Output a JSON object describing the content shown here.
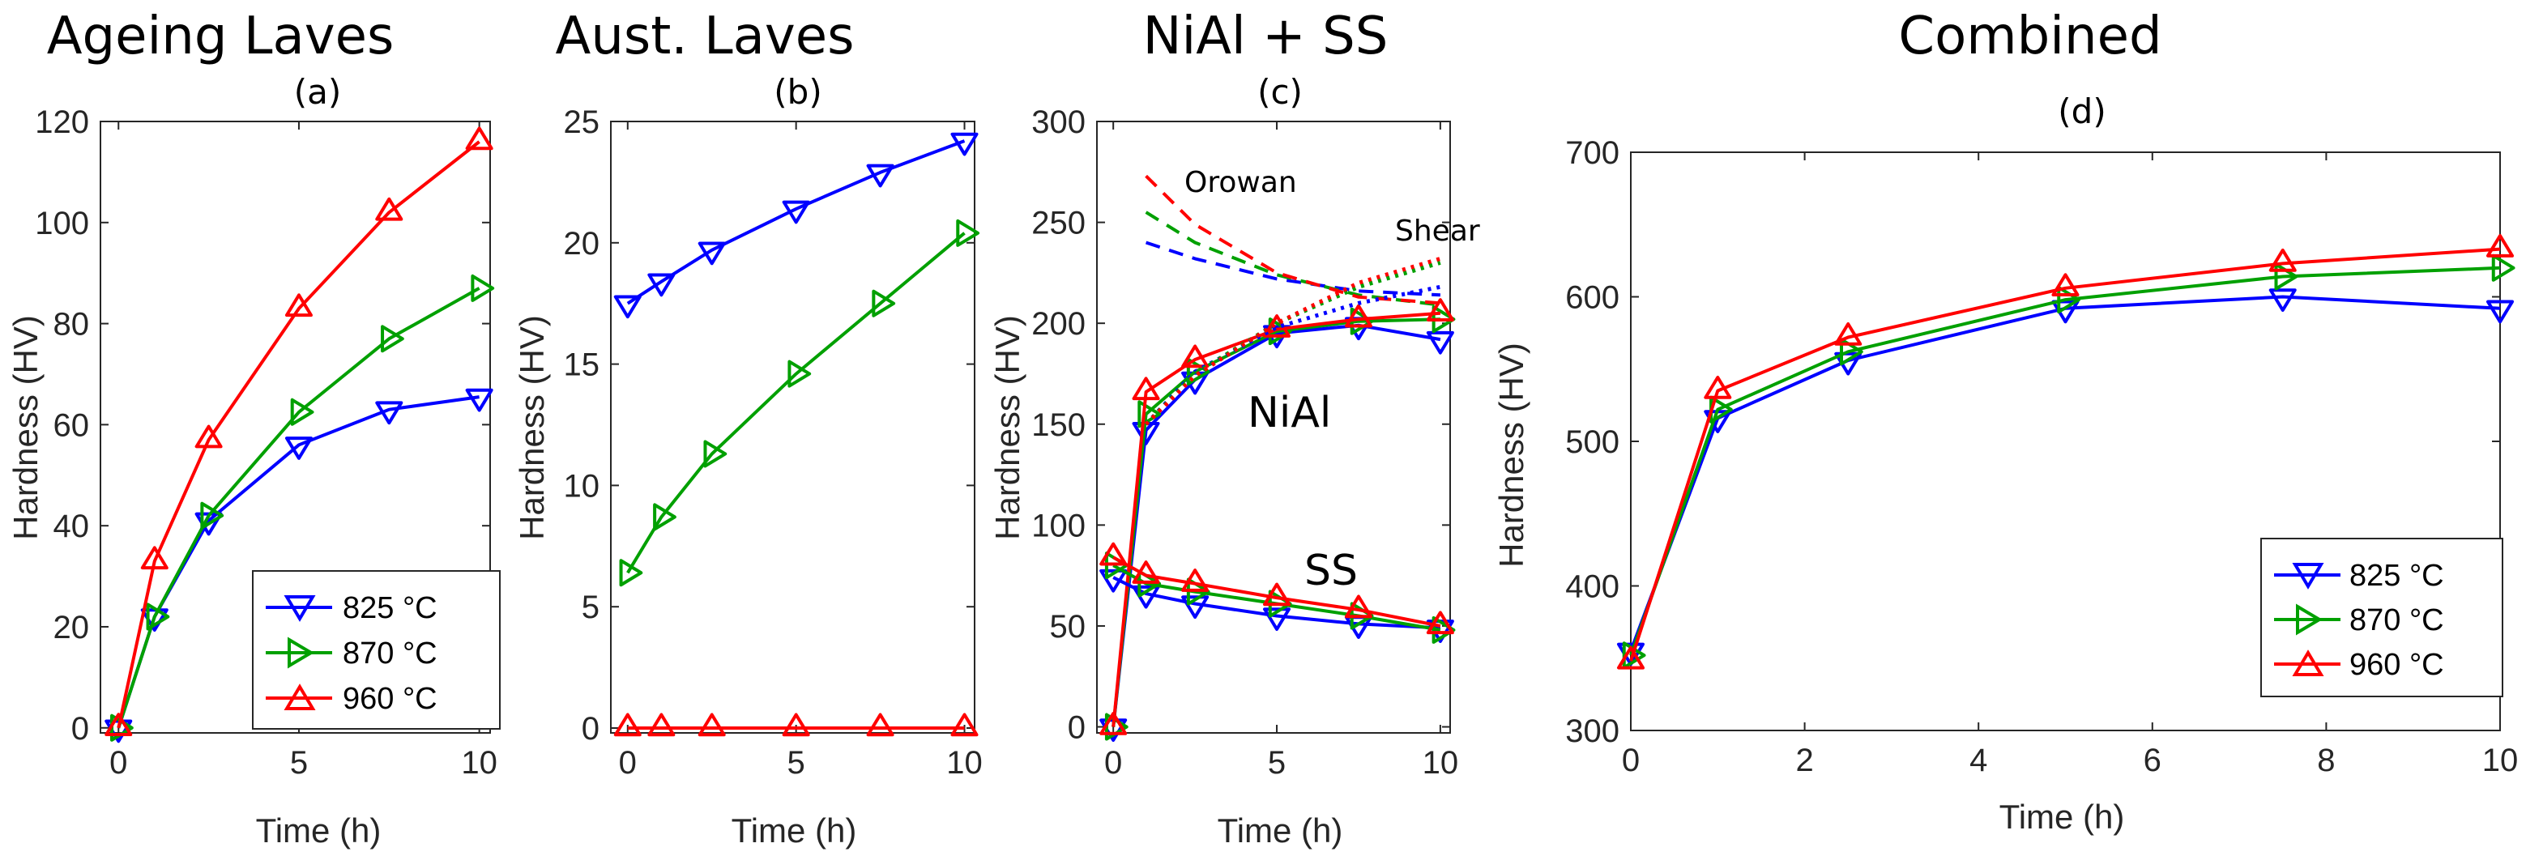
{
  "colors": {
    "c825": "#0000ff",
    "c870": "#00a000",
    "c960": "#ff0000",
    "axis": "#262626"
  },
  "legend_entries": [
    "825 °C",
    "870 °C",
    "960 °C"
  ],
  "chart_data": [
    {
      "id": "a",
      "type": "line",
      "title": "Ageing Laves",
      "subtitle": "(a)",
      "xlabel": "Time (h)",
      "ylabel": "Hardness (HV)",
      "xlim": [
        -0.5,
        10.3
      ],
      "ylim": [
        -1,
        120
      ],
      "xticks": [
        0,
        5,
        10
      ],
      "yticks": [
        0,
        20,
        40,
        60,
        80,
        100,
        120
      ],
      "legend": "bottom-right",
      "series": [
        {
          "name": "825 °C",
          "color": "#0000ff",
          "marker": "triangle-down",
          "x": [
            0,
            1,
            2.5,
            5,
            7.5,
            10
          ],
          "y": [
            0,
            22,
            41,
            56,
            63,
            65.5
          ]
        },
        {
          "name": "870 °C",
          "color": "#00a000",
          "marker": "triangle-right",
          "x": [
            0,
            1,
            2.5,
            5,
            7.5,
            10
          ],
          "y": [
            0,
            22,
            42,
            62.5,
            77,
            87
          ]
        },
        {
          "name": "960 °C",
          "color": "#ff0000",
          "marker": "triangle-up",
          "x": [
            0,
            1,
            2.5,
            5,
            7.5,
            10
          ],
          "y": [
            0,
            33,
            57,
            83,
            102,
            116
          ]
        }
      ]
    },
    {
      "id": "b",
      "type": "line",
      "title": "Aust. Laves",
      "subtitle": "(b)",
      "xlabel": "Time (h)",
      "ylabel": "Hardness (HV)",
      "xlim": [
        -0.5,
        10.3
      ],
      "ylim": [
        -0.2,
        25
      ],
      "xticks": [
        0,
        5,
        10
      ],
      "yticks": [
        0,
        5,
        10,
        15,
        20,
        25
      ],
      "series": [
        {
          "name": "825 °C",
          "color": "#0000ff",
          "marker": "triangle-down",
          "x": [
            0,
            1,
            2.5,
            5,
            7.5,
            10
          ],
          "y": [
            17.5,
            18.4,
            19.7,
            21.4,
            22.9,
            24.2
          ]
        },
        {
          "name": "870 °C",
          "color": "#00a000",
          "marker": "triangle-right",
          "x": [
            0,
            1,
            2.5,
            5,
            7.5,
            10
          ],
          "y": [
            6.4,
            8.7,
            11.3,
            14.6,
            17.5,
            20.4
          ]
        },
        {
          "name": "960 °C",
          "color": "#ff0000",
          "marker": "triangle-up",
          "x": [
            0,
            1,
            2.5,
            5,
            7.5,
            10
          ],
          "y": [
            0,
            0,
            0,
            0,
            0,
            0
          ]
        }
      ]
    },
    {
      "id": "c",
      "type": "line",
      "title": "NiAl + SS",
      "subtitle": "(c)",
      "xlabel": "Time (h)",
      "ylabel": "Hardness (HV)",
      "xlim": [
        -0.5,
        10.3
      ],
      "ylim": [
        -3,
        300
      ],
      "xticks": [
        0,
        5,
        10
      ],
      "yticks": [
        0,
        50,
        100,
        150,
        200,
        250,
        300
      ],
      "annotations": {
        "orowan": "Orowan",
        "shear": "Shear",
        "nial": "NiAl",
        "ss": "SS"
      },
      "series": [
        {
          "name": "825 °C NiAl",
          "color": "#0000ff",
          "marker": "triangle-down",
          "x": [
            0,
            1,
            2.5,
            5,
            7.5,
            10
          ],
          "y": [
            0,
            147,
            172,
            195,
            199,
            192
          ]
        },
        {
          "name": "870 °C NiAl",
          "color": "#00a000",
          "marker": "triangle-right",
          "x": [
            0,
            1,
            2.5,
            5,
            7.5,
            10
          ],
          "y": [
            0,
            155,
            176,
            196,
            201,
            202
          ]
        },
        {
          "name": "960 °C NiAl",
          "color": "#ff0000",
          "marker": "triangle-up",
          "x": [
            0,
            1,
            2.5,
            5,
            7.5,
            10
          ],
          "y": [
            0,
            166,
            182,
            197,
            202,
            205
          ]
        },
        {
          "name": "825 °C SS",
          "color": "#0000ff",
          "marker": "triangle-down",
          "x": [
            0,
            1,
            2.5,
            5,
            7.5,
            10
          ],
          "y": [
            74,
            66,
            61,
            55,
            51,
            49
          ]
        },
        {
          "name": "870 °C SS",
          "color": "#00a000",
          "marker": "triangle-right",
          "x": [
            0,
            1,
            2.5,
            5,
            7.5,
            10
          ],
          "y": [
            80,
            71,
            67,
            61,
            55,
            48
          ]
        },
        {
          "name": "960 °C SS",
          "color": "#ff0000",
          "marker": "triangle-up",
          "x": [
            0,
            1,
            2.5,
            5,
            7.5,
            10
          ],
          "y": [
            84,
            75,
            71,
            64,
            58,
            50
          ]
        },
        {
          "name": "825 °C Orowan",
          "color": "#0000ff",
          "style": "dashed",
          "x": [
            1,
            2.5,
            5,
            7.5,
            10
          ],
          "y": [
            240,
            232,
            222,
            216,
            214
          ]
        },
        {
          "name": "870 °C Orowan",
          "color": "#00a000",
          "style": "dashed",
          "x": [
            1,
            2.5,
            5,
            7.5,
            10
          ],
          "y": [
            255,
            240,
            224,
            214,
            209
          ]
        },
        {
          "name": "960 °C Orowan",
          "color": "#ff0000",
          "style": "dashed",
          "x": [
            1,
            2.5,
            5,
            7.5,
            10
          ],
          "y": [
            273,
            249,
            225,
            213,
            210
          ]
        },
        {
          "name": "825 °C Shear",
          "color": "#0000ff",
          "style": "dotted",
          "x": [
            1,
            2.5,
            5,
            7.5,
            10
          ],
          "y": [
            150,
            176,
            198,
            210,
            218
          ]
        },
        {
          "name": "870 °C Shear",
          "color": "#00a000",
          "style": "dotted",
          "x": [
            1,
            2.5,
            5,
            7.5,
            10
          ],
          "y": [
            150,
            175,
            200,
            218,
            230
          ]
        },
        {
          "name": "960 °C Shear",
          "color": "#ff0000",
          "style": "dotted",
          "x": [
            1,
            2.5,
            5,
            7.5,
            10
          ],
          "y": [
            150,
            174,
            200,
            220,
            232
          ]
        }
      ]
    },
    {
      "id": "d",
      "type": "line",
      "title": "Combined",
      "subtitle": "(d)",
      "xlabel": "Time (h)",
      "ylabel": "Hardness (HV)",
      "xlim": [
        0,
        10
      ],
      "ylim": [
        300,
        700
      ],
      "xticks": [
        0,
        2,
        4,
        6,
        8,
        10
      ],
      "yticks": [
        300,
        400,
        500,
        600,
        700
      ],
      "legend": "bottom-right",
      "series": [
        {
          "name": "825 °C",
          "color": "#0000ff",
          "marker": "triangle-down",
          "x": [
            0,
            1,
            2.5,
            5,
            7.5,
            10
          ],
          "y": [
            355,
            516,
            556,
            592,
            600,
            592
          ]
        },
        {
          "name": "870 °C",
          "color": "#00a000",
          "marker": "triangle-right",
          "x": [
            0,
            1,
            2.5,
            5,
            7.5,
            10
          ],
          "y": [
            352,
            522,
            562,
            598,
            614,
            620
          ]
        },
        {
          "name": "960 °C",
          "color": "#ff0000",
          "marker": "triangle-up",
          "x": [
            0,
            1,
            2.5,
            5,
            7.5,
            10
          ],
          "y": [
            348,
            535,
            572,
            606,
            623,
            633
          ]
        }
      ]
    }
  ]
}
